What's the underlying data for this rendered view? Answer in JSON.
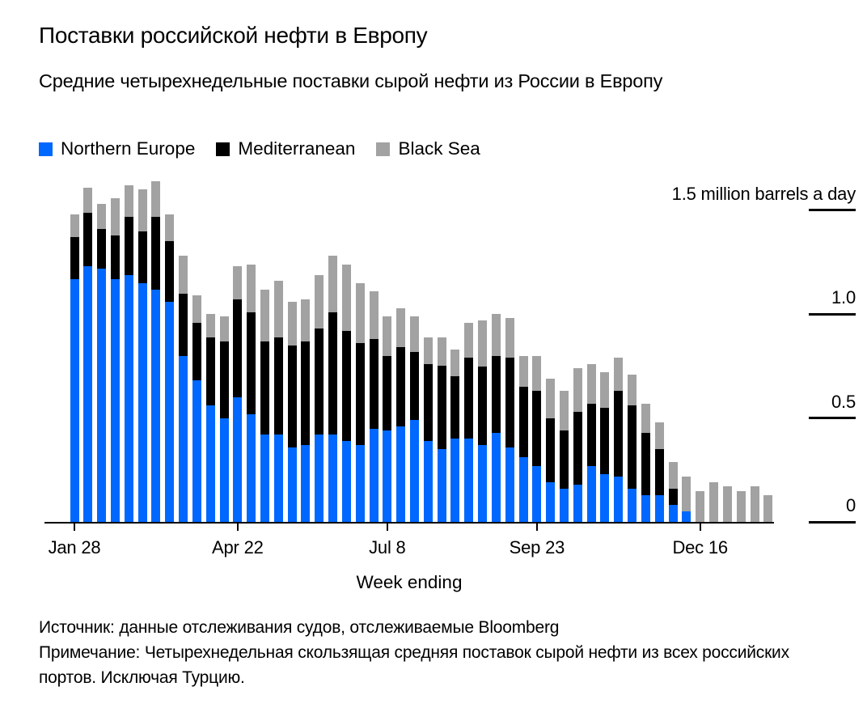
{
  "header": {
    "title": "Поставки российской нефти в Европу",
    "subtitle": "Средние четырехнедельные поставки сырой нефти из России в Европу"
  },
  "legend": [
    {
      "label": "Northern Europe",
      "color": "#0068ff"
    },
    {
      "label": "Mediterranean",
      "color": "#000000"
    },
    {
      "label": "Black Sea",
      "color": "#a2a2a2"
    }
  ],
  "colors": {
    "northern_europe": "#0068ff",
    "mediterranean": "#000000",
    "black_sea": "#a2a2a2",
    "axis": "#000000",
    "background": "#ffffff"
  },
  "chart_data": {
    "type": "bar",
    "stacked": true,
    "orientation": "vertical",
    "grid": false,
    "legend_position": "top-left",
    "y_axis": {
      "min": 0,
      "max": 1.68,
      "unit": "million barrels a day",
      "ticks": [
        {
          "value": 1.5,
          "label": "1.5 million barrels a day"
        },
        {
          "value": 1.0,
          "label": "1.0"
        },
        {
          "value": 0.5,
          "label": "0.5"
        },
        {
          "value": 0,
          "label": "0"
        }
      ]
    },
    "x_axis": {
      "label": "Week ending",
      "ticks": [
        {
          "index": 0,
          "label": "Jan 28"
        },
        {
          "index": 12,
          "label": "Apr 22"
        },
        {
          "index": 23,
          "label": "Jul 8"
        },
        {
          "index": 34,
          "label": "Sep 23"
        },
        {
          "index": 46,
          "label": "Dec 16"
        }
      ],
      "n_weeks": 52
    },
    "series": [
      {
        "name": "Northern Europe",
        "color": "#0068ff",
        "values": [
          1.17,
          1.23,
          1.22,
          1.17,
          1.19,
          1.15,
          1.12,
          1.06,
          0.8,
          0.68,
          0.56,
          0.5,
          0.6,
          0.52,
          0.42,
          0.42,
          0.36,
          0.37,
          0.42,
          0.42,
          0.39,
          0.37,
          0.45,
          0.44,
          0.46,
          0.49,
          0.39,
          0.35,
          0.4,
          0.4,
          0.37,
          0.43,
          0.36,
          0.31,
          0.27,
          0.19,
          0.16,
          0.18,
          0.27,
          0.23,
          0.22,
          0.16,
          0.13,
          0.13,
          0.08,
          0.05,
          0,
          0,
          0,
          0,
          0,
          0
        ]
      },
      {
        "name": "Mediterranean",
        "color": "#000000",
        "values": [
          0.2,
          0.26,
          0.19,
          0.21,
          0.28,
          0.25,
          0.35,
          0.29,
          0.3,
          0.28,
          0.33,
          0.37,
          0.47,
          0.49,
          0.45,
          0.47,
          0.49,
          0.5,
          0.51,
          0.59,
          0.53,
          0.49,
          0.43,
          0.36,
          0.38,
          0.33,
          0.37,
          0.4,
          0.3,
          0.39,
          0.38,
          0.37,
          0.43,
          0.34,
          0.36,
          0.31,
          0.28,
          0.35,
          0.3,
          0.32,
          0.41,
          0.4,
          0.3,
          0.22,
          0.08,
          0,
          0,
          0,
          0,
          0,
          0,
          0
        ]
      },
      {
        "name": "Black Sea",
        "color": "#a2a2a2",
        "values": [
          0.11,
          0.12,
          0.12,
          0.18,
          0.15,
          0.2,
          0.17,
          0.13,
          0.18,
          0.13,
          0.11,
          0.12,
          0.16,
          0.23,
          0.25,
          0.27,
          0.21,
          0.2,
          0.26,
          0.27,
          0.32,
          0.29,
          0.23,
          0.19,
          0.19,
          0.17,
          0.13,
          0.14,
          0.13,
          0.17,
          0.22,
          0.2,
          0.19,
          0.15,
          0.17,
          0.19,
          0.19,
          0.21,
          0.19,
          0.17,
          0.16,
          0.15,
          0.14,
          0.13,
          0.13,
          0.17,
          0.15,
          0.19,
          0.17,
          0.15,
          0.17,
          0.13
        ]
      }
    ]
  },
  "footer": {
    "source": "Источник: данные отслеживания судов, отслеживаемые Bloomberg",
    "note": "Примечание: Четырехнедельная скользящая средняя поставок сырой нефти из всех российских портов. Исключая Турцию."
  }
}
